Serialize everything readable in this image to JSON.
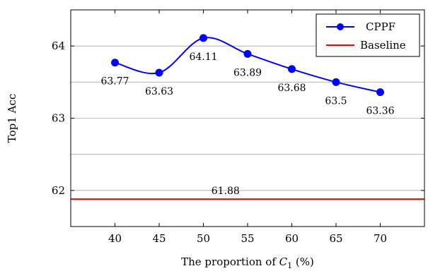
{
  "chart_data": {
    "type": "line",
    "title": "",
    "xlabel": "The proportion of C1 (%)",
    "xlabel_parts": {
      "before": "The proportion of ",
      "var": "C",
      "sub": "1",
      "after": " (%)"
    },
    "ylabel": "Top1 Acc",
    "x": [
      40,
      45,
      50,
      55,
      60,
      65,
      70
    ],
    "xlim": [
      35,
      75
    ],
    "ylim": [
      61.5,
      64.5
    ],
    "xticks": [
      40,
      45,
      50,
      55,
      60,
      65,
      70
    ],
    "yticks": [
      62,
      63,
      64
    ],
    "grid": "horizontal-major-and-minor",
    "legend_position": "top-right",
    "series": [
      {
        "name": "CPPF",
        "color": "#0000ff",
        "marker": "circle",
        "smooth": true,
        "values": [
          63.77,
          63.63,
          64.11,
          63.89,
          63.68,
          63.5,
          63.36
        ],
        "labels": [
          "63.77",
          "63.63",
          "64.11",
          "63.89",
          "63.68",
          "63.5",
          "63.36"
        ]
      },
      {
        "name": "Baseline",
        "color": "#ff0000",
        "constant": 61.88,
        "label": "61.88"
      }
    ]
  }
}
